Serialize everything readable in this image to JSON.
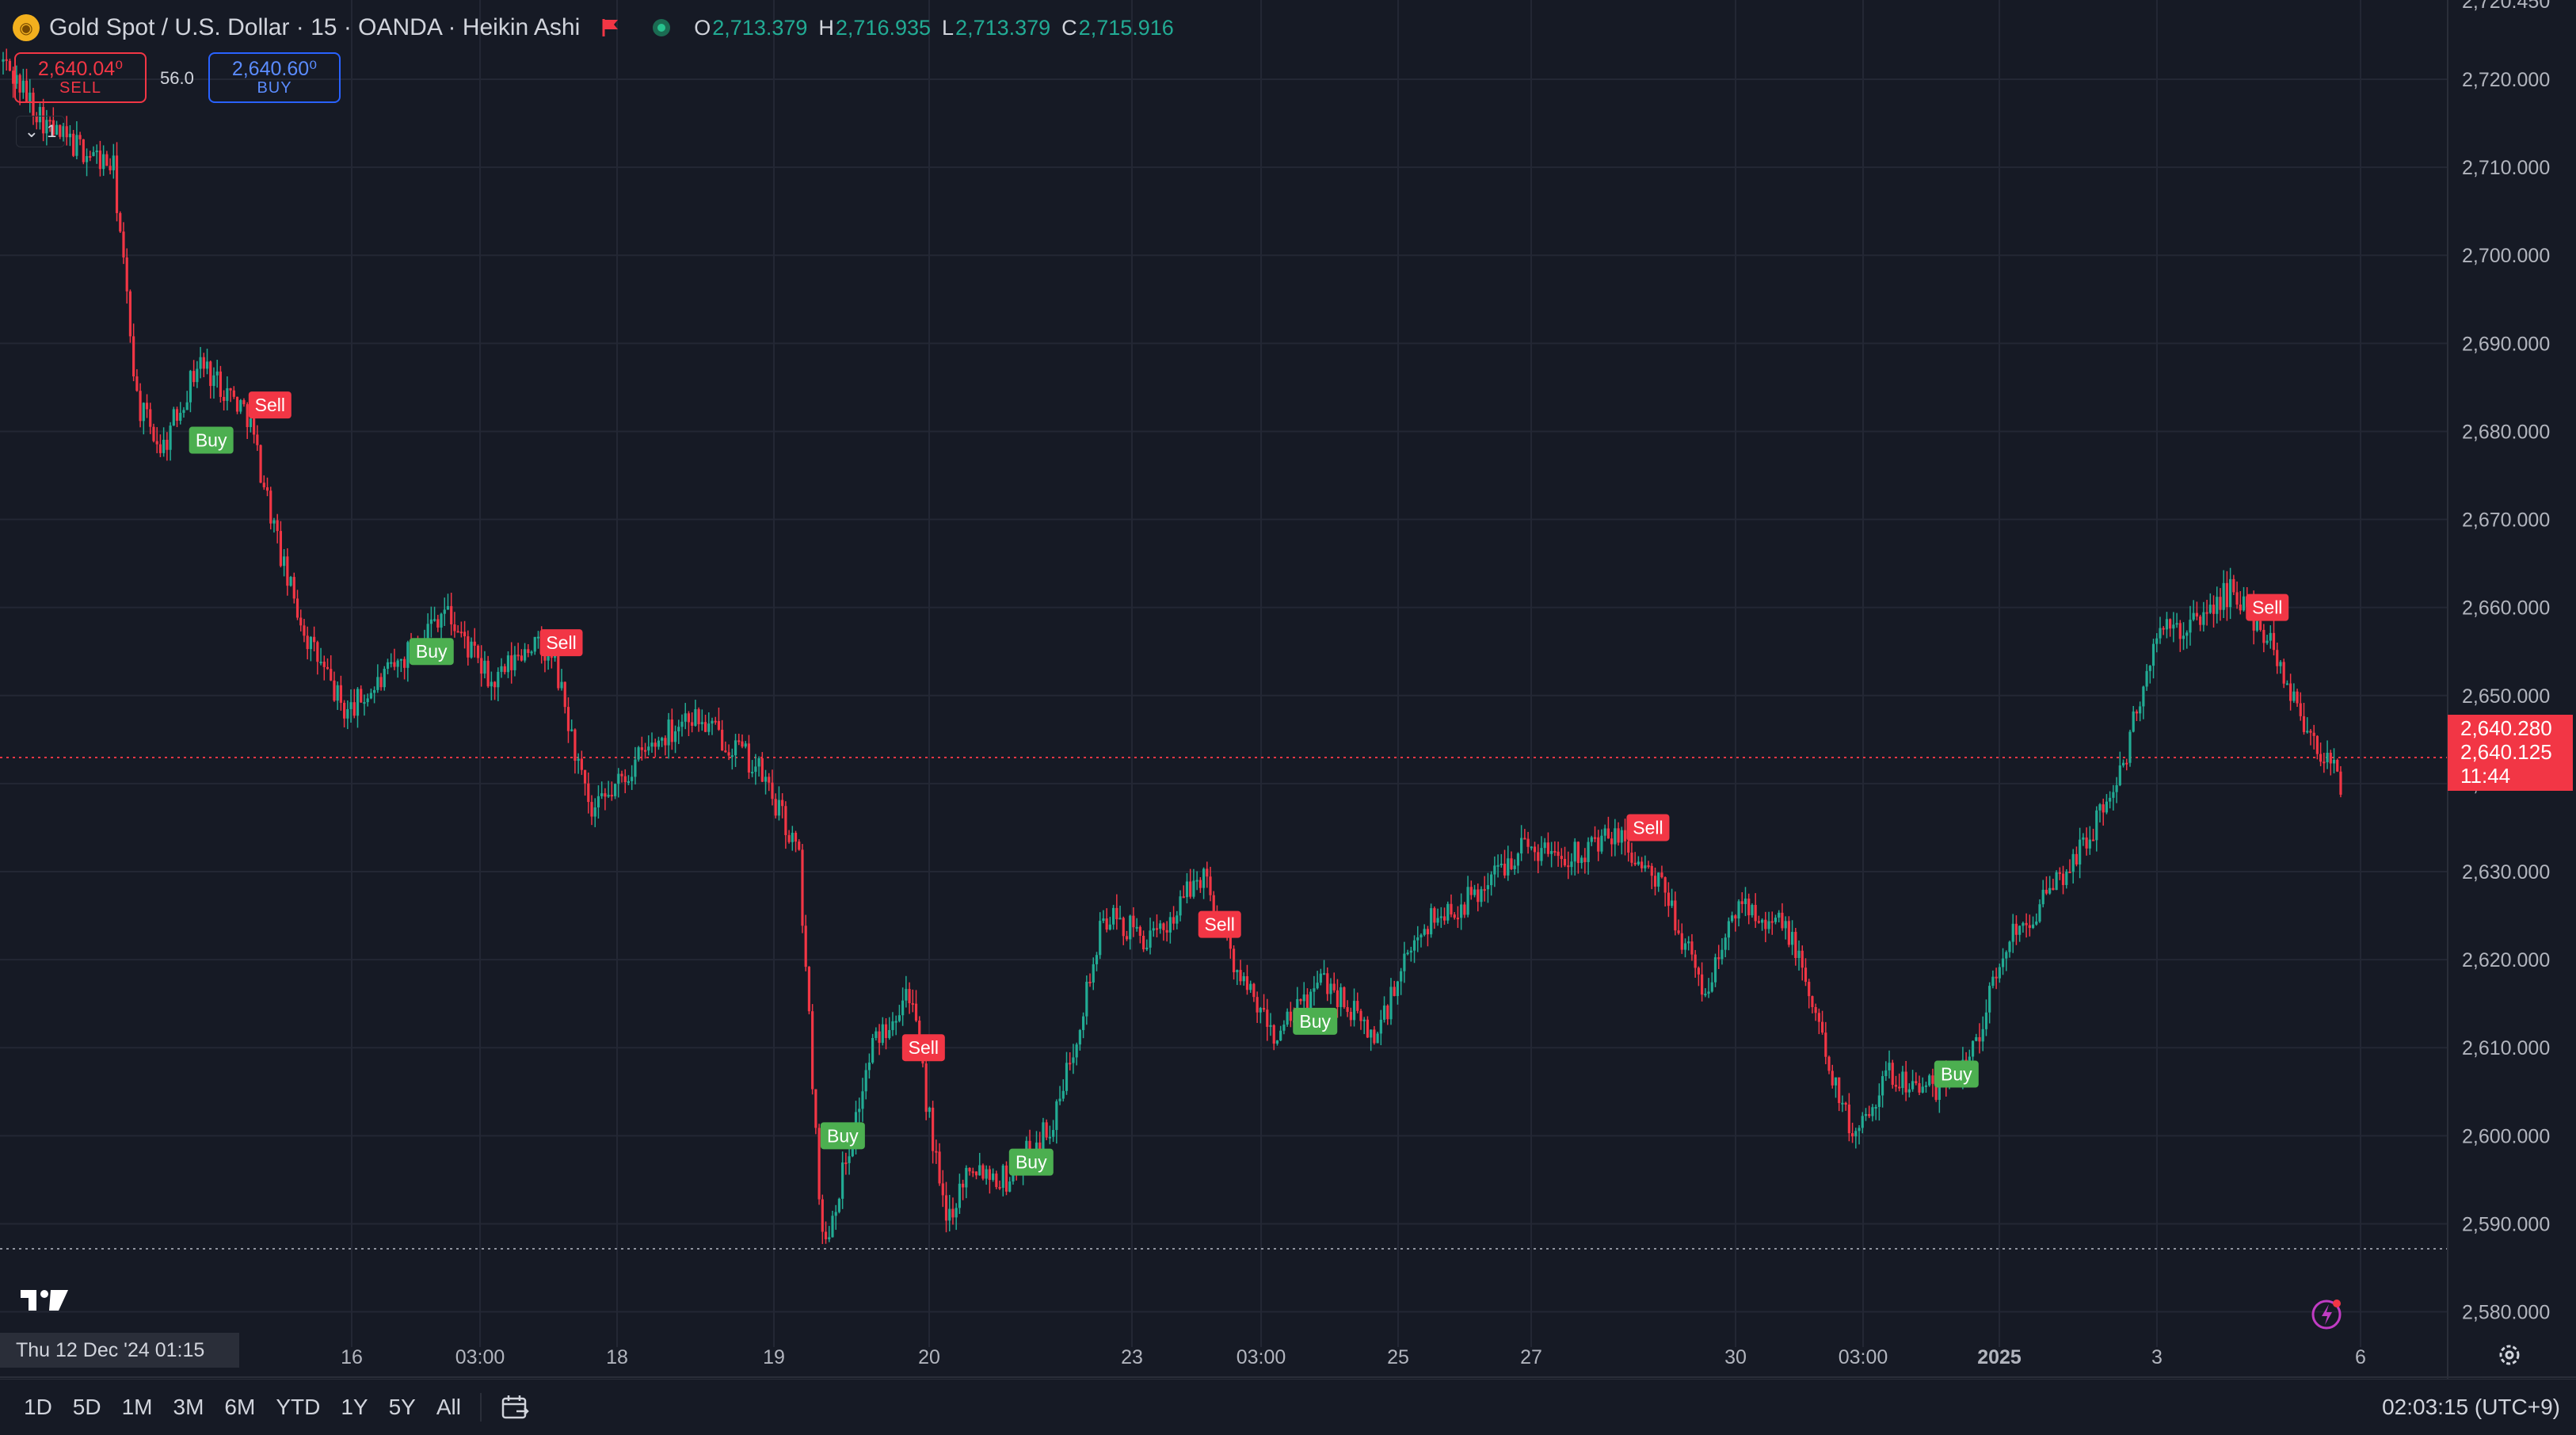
{
  "header": {
    "symbol_title": "Gold Spot / U.S. Dollar · 15 · OANDA · Heikin Ashi",
    "ohlc": [
      {
        "key": "O",
        "value": "2,713.379"
      },
      {
        "key": "H",
        "value": "2,716.935"
      },
      {
        "key": "L",
        "value": "2,713.379"
      },
      {
        "key": "C",
        "value": "2,715.916"
      }
    ]
  },
  "trade_panel": {
    "sell_price": "2,640.04⁰",
    "sell_label": "SELL",
    "spread": "56.0",
    "buy_price": "2,640.60⁰",
    "buy_label": "BUY",
    "indicator_count": "1"
  },
  "price_tag": {
    "line1": "2,640.280",
    "line2": "2,640.125",
    "countdown": "11:44"
  },
  "crosshair_time": "Thu 12 Dec '24   01:15",
  "bottom_bar": {
    "periods": [
      "1D",
      "5D",
      "1M",
      "3M",
      "6M",
      "YTD",
      "1Y",
      "5Y",
      "All"
    ],
    "clock": "02:03:15 (UTC+9)"
  },
  "colors": {
    "background": "#161a25",
    "up": "#22ab94",
    "down": "#f23645",
    "buy_marker": "#4caf50",
    "sell_marker": "#f23645",
    "grid": "#232734",
    "text": "#d1d4dc"
  },
  "chart_data": {
    "type": "candlestick",
    "style": "Heikin Ashi",
    "symbol": "XAUUSD",
    "timeframe": "15",
    "ylim": [
      2576,
      2729
    ],
    "y_ticks": [
      2720,
      2710,
      2700,
      2690,
      2680,
      2670,
      2660,
      2650,
      2640,
      2630,
      2620,
      2610,
      2600,
      2590,
      2580
    ],
    "y_tick_labels": [
      "2,720.000",
      "2,710.000",
      "2,700.000",
      "2,690.000",
      "2,680.000",
      "2,670.000",
      "2,660.000",
      "2,650.000",
      "2,640.000",
      "2,630.000",
      "2,620.000",
      "2,610.000",
      "2,600.000",
      "2,590.000",
      "2,580.000"
    ],
    "y_top_partial_label": "2,720.450",
    "x_tick_labels": [
      "16",
      "03:00",
      "18",
      "19",
      "20",
      "23",
      "03:00",
      "25",
      "27",
      "30",
      "03:00",
      "2025",
      "3",
      "6"
    ],
    "current_price": 2640.28,
    "low_line": 2583.5,
    "path_points": [
      [
        0,
        2722
      ],
      [
        0.02,
        2714
      ],
      [
        0.045,
        2710
      ],
      [
        0.055,
        2683
      ],
      [
        0.065,
        2678
      ],
      [
        0.08,
        2688
      ],
      [
        0.1,
        2682
      ],
      [
        0.115,
        2664
      ],
      [
        0.125,
        2656
      ],
      [
        0.14,
        2648
      ],
      [
        0.16,
        2653
      ],
      [
        0.18,
        2660
      ],
      [
        0.2,
        2651
      ],
      [
        0.215,
        2656
      ],
      [
        0.225,
        2654
      ],
      [
        0.24,
        2636
      ],
      [
        0.26,
        2643
      ],
      [
        0.28,
        2648
      ],
      [
        0.3,
        2644
      ],
      [
        0.31,
        2641
      ],
      [
        0.325,
        2632
      ],
      [
        0.335,
        2587
      ],
      [
        0.345,
        2598
      ],
      [
        0.355,
        2610
      ],
      [
        0.37,
        2617
      ],
      [
        0.385,
        2590
      ],
      [
        0.395,
        2597
      ],
      [
        0.41,
        2595
      ],
      [
        0.43,
        2602
      ],
      [
        0.45,
        2625
      ],
      [
        0.47,
        2622
      ],
      [
        0.49,
        2630
      ],
      [
        0.505,
        2618
      ],
      [
        0.52,
        2611
      ],
      [
        0.54,
        2618
      ],
      [
        0.56,
        2611
      ],
      [
        0.58,
        2624
      ],
      [
        0.6,
        2627
      ],
      [
        0.62,
        2633
      ],
      [
        0.64,
        2632
      ],
      [
        0.66,
        2634
      ],
      [
        0.68,
        2627
      ],
      [
        0.695,
        2616
      ],
      [
        0.71,
        2627
      ],
      [
        0.73,
        2623
      ],
      [
        0.74,
        2614
      ],
      [
        0.755,
        2600
      ],
      [
        0.77,
        2607
      ],
      [
        0.79,
        2605
      ],
      [
        0.805,
        2610
      ],
      [
        0.82,
        2623
      ],
      [
        0.835,
        2627
      ],
      [
        0.85,
        2633
      ],
      [
        0.865,
        2641
      ],
      [
        0.88,
        2657
      ],
      [
        0.895,
        2658
      ],
      [
        0.91,
        2662
      ],
      [
        0.925,
        2657
      ],
      [
        0.94,
        2647
      ],
      [
        0.955,
        2640
      ]
    ],
    "signals": [
      {
        "label": "Buy",
        "x": 0.085,
        "price": 2679
      },
      {
        "label": "Sell",
        "x": 0.109,
        "price": 2683
      },
      {
        "label": "Buy",
        "x": 0.175,
        "price": 2655
      },
      {
        "label": "Sell",
        "x": 0.228,
        "price": 2656
      },
      {
        "label": "Buy",
        "x": 0.343,
        "price": 2600
      },
      {
        "label": "Sell",
        "x": 0.376,
        "price": 2610
      },
      {
        "label": "Buy",
        "x": 0.42,
        "price": 2597
      },
      {
        "label": "Sell",
        "x": 0.497,
        "price": 2624
      },
      {
        "label": "Buy",
        "x": 0.536,
        "price": 2613
      },
      {
        "label": "Sell",
        "x": 0.672,
        "price": 2635
      },
      {
        "label": "Buy",
        "x": 0.798,
        "price": 2607
      },
      {
        "label": "Sell",
        "x": 0.925,
        "price": 2660
      }
    ]
  }
}
